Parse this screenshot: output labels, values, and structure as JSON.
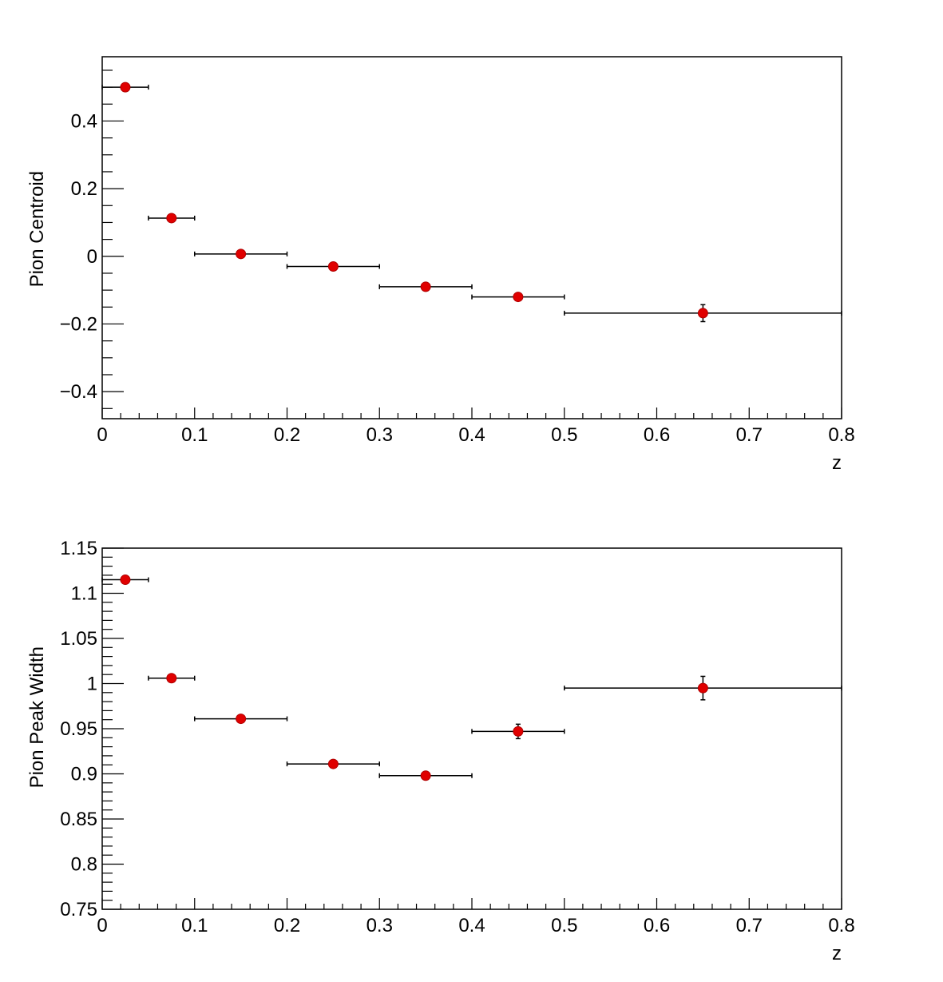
{
  "colors": {
    "marker": "#e00000",
    "marker_edge": "#b00000",
    "axis": "#000000",
    "background": "#ffffff"
  },
  "chart_data": [
    {
      "type": "scatter",
      "title": "",
      "xlabel": "z",
      "ylabel": "Pion Centroid",
      "xlim": [
        0,
        0.8
      ],
      "ylim": [
        -0.48,
        0.59
      ],
      "grid": false,
      "x_ticks": [
        0,
        0.1,
        0.2,
        0.3,
        0.4,
        0.5,
        0.6,
        0.7,
        0.8
      ],
      "x_tick_labels": [
        "0",
        "0.1",
        "0.2",
        "0.3",
        "0.4",
        "0.5",
        "0.6",
        "0.7",
        "0.8"
      ],
      "y_ticks": [
        -0.4,
        -0.2,
        0,
        0.2,
        0.4
      ],
      "y_tick_labels": [
        "−0.4",
        "−0.2",
        "0",
        "0.2",
        "0.4"
      ],
      "series": [
        {
          "x": [
            0.025,
            0.075,
            0.15,
            0.25,
            0.35,
            0.45,
            0.65
          ],
          "x_err": [
            0.025,
            0.025,
            0.05,
            0.05,
            0.05,
            0.05,
            0.15
          ],
          "y": [
            0.5,
            0.113,
            0.007,
            -0.03,
            -0.09,
            -0.12,
            -0.168
          ],
          "y_err": [
            0.003,
            0.003,
            0.004,
            0.004,
            0.005,
            0.006,
            0.025
          ]
        }
      ]
    },
    {
      "type": "scatter",
      "title": "",
      "xlabel": "z",
      "ylabel": "Pion Peak Width",
      "xlim": [
        0,
        0.8
      ],
      "ylim": [
        0.75,
        1.15
      ],
      "grid": false,
      "x_ticks": [
        0,
        0.1,
        0.2,
        0.3,
        0.4,
        0.5,
        0.6,
        0.7,
        0.8
      ],
      "x_tick_labels": [
        "0",
        "0.1",
        "0.2",
        "0.3",
        "0.4",
        "0.5",
        "0.6",
        "0.7",
        "0.8"
      ],
      "y_ticks": [
        0.75,
        0.8,
        0.85,
        0.9,
        0.95,
        1.0,
        1.05,
        1.1,
        1.15
      ],
      "y_tick_labels": [
        "0.75",
        "0.8",
        "0.85",
        "0.9",
        "0.95",
        "1",
        "1.05",
        "1.1",
        "1.15"
      ],
      "series": [
        {
          "x": [
            0.025,
            0.075,
            0.15,
            0.25,
            0.35,
            0.45,
            0.65
          ],
          "x_err": [
            0.025,
            0.025,
            0.05,
            0.05,
            0.05,
            0.05,
            0.15
          ],
          "y": [
            1.115,
            1.006,
            0.961,
            0.911,
            0.898,
            0.947,
            0.995
          ],
          "y_err": [
            0.002,
            0.002,
            0.002,
            0.003,
            0.003,
            0.008,
            0.013
          ]
        }
      ]
    }
  ]
}
